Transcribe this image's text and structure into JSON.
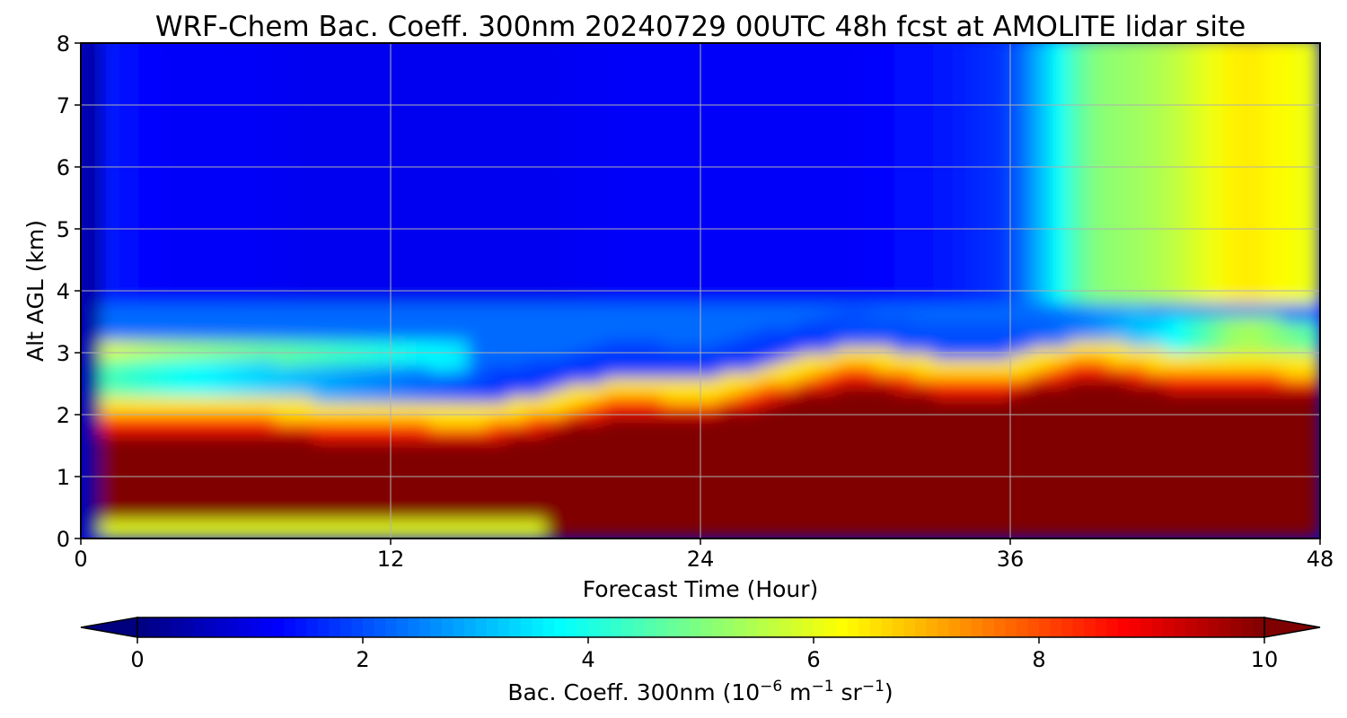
{
  "chart_data": {
    "type": "heatmap",
    "title": "WRF-Chem Bac. Coeff. 300nm  20240729 00UTC 48h fcst at AMOLITE lidar site",
    "xlabel": "Forecast Time (Hour)",
    "ylabel": "Alt AGL (km)",
    "xlim": [
      0,
      48
    ],
    "ylim": [
      0,
      8
    ],
    "xticks": [
      "0",
      "12",
      "24",
      "36",
      "48"
    ],
    "yticks": [
      "0",
      "1",
      "2",
      "3",
      "4",
      "5",
      "6",
      "7",
      "8"
    ],
    "grid": true,
    "colormap": "jet",
    "colorbar": {
      "label_main": "Bac. Coeff. 300nm  (10",
      "label_exp1": "−6",
      "label_mid1": " m",
      "label_exp2": "−1",
      "label_mid2": " sr",
      "label_exp3": "−1",
      "label_end": ")",
      "range": [
        0,
        10
      ],
      "ticks": [
        "0",
        "2",
        "4",
        "6",
        "8",
        "10"
      ],
      "extend": "both",
      "orientation": "horizontal"
    },
    "field_description_units": "1e-6 m^-1 sr^-1",
    "x_hours": [
      0,
      1,
      3,
      6,
      9,
      12,
      15,
      18,
      21,
      24,
      27,
      30,
      33,
      36,
      39,
      42,
      45,
      48
    ],
    "boundary_layer_top_km": [
      0.0,
      2.0,
      2.0,
      2.0,
      1.9,
      1.9,
      1.8,
      2.0,
      2.3,
      2.2,
      2.5,
      2.8,
      2.6,
      2.6,
      2.9,
      2.7,
      2.7,
      2.6
    ],
    "aerosol_layer_2_3km_value": [
      0,
      6,
      5.5,
      5,
      4.5,
      4,
      3.5,
      3,
      3,
      3,
      3.2,
      3.5,
      3.5,
      3.5,
      4,
      5,
      7,
      6
    ],
    "upper_tropospheric_plume_value_above_4km": [
      0,
      1.5,
      1.2,
      1.2,
      1.1,
      1.1,
      1.1,
      1.1,
      1.2,
      1.2,
      1.2,
      1.2,
      1.4,
      1.8,
      5.0,
      5.5,
      6.5,
      6.0
    ]
  }
}
